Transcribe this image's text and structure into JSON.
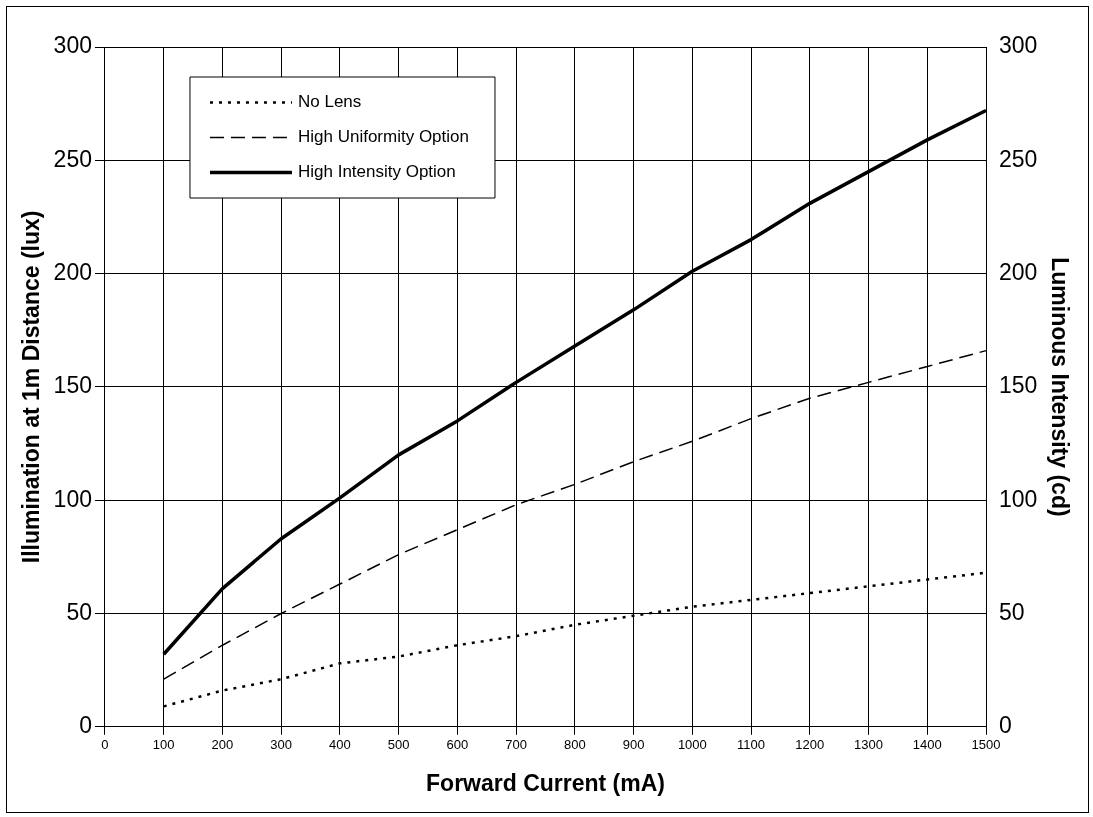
{
  "chart_data": {
    "type": "line",
    "xlabel": "Forward Current (mA)",
    "ylabel": "Illumination at 1m Distance (lux)",
    "y2label": "Luminous Intensity (cd)",
    "x": [
      100,
      200,
      300,
      400,
      500,
      600,
      700,
      800,
      900,
      1000,
      1100,
      1200,
      1300,
      1400,
      1500
    ],
    "series": [
      {
        "name": "No Lens",
        "color": "#000000",
        "line_style": "dotted",
        "values": [
          9,
          16,
          21,
          28,
          31,
          36,
          40,
          45,
          49,
          53,
          56,
          59,
          62,
          65,
          68
        ]
      },
      {
        "name": "High Uniformity Option",
        "color": "#000000",
        "line_style": "dashed",
        "values": [
          21,
          36,
          50,
          63,
          76,
          87,
          98,
          107,
          117,
          126,
          136,
          145,
          152,
          159,
          166
        ]
      },
      {
        "name": "High Intensity Option",
        "color": "#000000",
        "line_style": "solid",
        "values": [
          32,
          61,
          83,
          101,
          120,
          135,
          152,
          168,
          184,
          201,
          215,
          231,
          245,
          259,
          272
        ]
      }
    ],
    "xlim": [
      0,
      1500
    ],
    "xticks": [
      0,
      100,
      200,
      300,
      400,
      500,
      600,
      700,
      800,
      900,
      1000,
      1100,
      1200,
      1300,
      1400,
      1500
    ],
    "ylim": [
      0,
      300
    ],
    "yticks": [
      0,
      50,
      100,
      150,
      200,
      250,
      300
    ],
    "y2lim": [
      0,
      300
    ],
    "y2ticks": [
      0,
      50,
      100,
      150,
      200,
      250,
      300
    ],
    "grid": true,
    "legend": "top left",
    "marker": "none"
  }
}
